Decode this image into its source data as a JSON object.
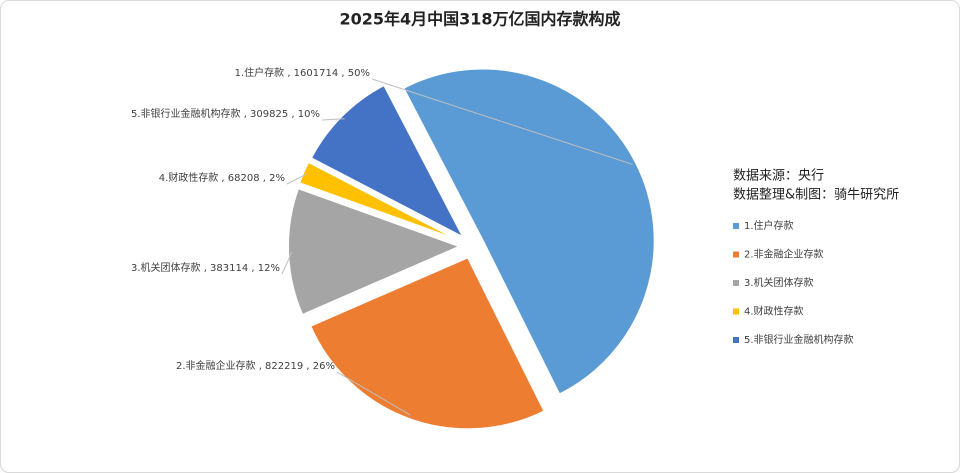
{
  "chart_data": {
    "type": "pie",
    "title": "2025年4月中国318万亿国内存款构成",
    "categories": [
      "1.住户存款",
      "2.非金融企业存款",
      "3.机关团体存款",
      "4.财政性存款",
      "5.非银行业金融机构存款"
    ],
    "values": [
      1601714,
      822219,
      383114,
      68208,
      309825
    ],
    "value_labels": [
      "1.住户存款 , 1601714 , 50%",
      "2.非金融企业存款 , 822219 , 26%",
      "3.机关团体存款 , 383114 , 12%",
      "4.财政性存款 , 68208 , 2%",
      "5.非银行业金融机构存款 , 309825 , 10%"
    ],
    "colors": [
      "#5b9bd5",
      "#ed7d31",
      "#a5a5a5",
      "#ffc000",
      "#4472c4"
    ],
    "annotations": [
      "数据来源：央行",
      "数据整理&制图：骑牛研究所"
    ],
    "legend": "right"
  }
}
